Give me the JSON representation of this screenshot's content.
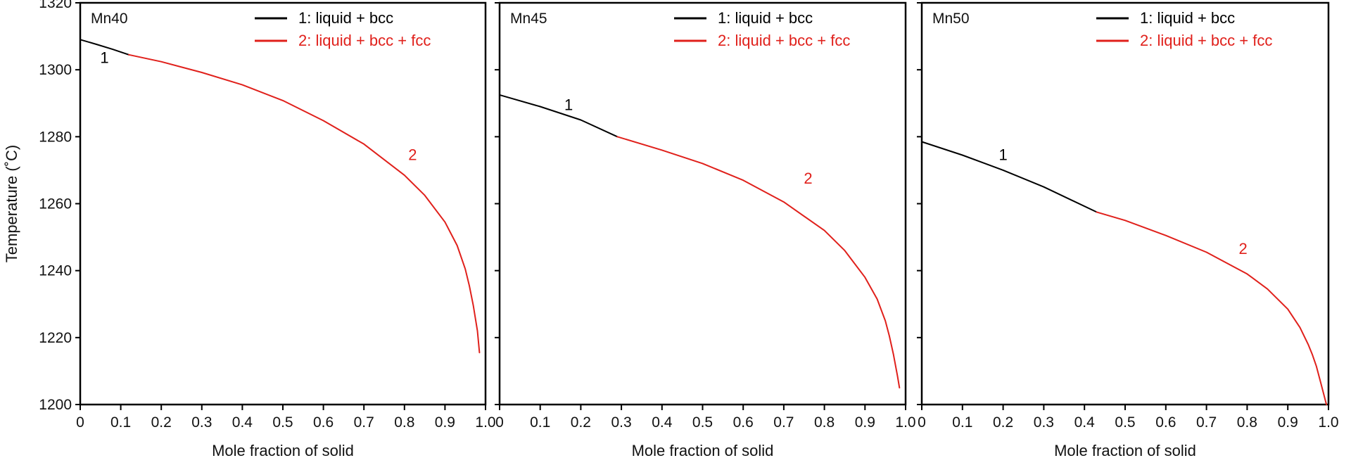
{
  "chart_data": [
    {
      "type": "line",
      "title": "Mn40",
      "xlabel": "Mole fraction of solid",
      "ylabel": "Temperature (˚C)",
      "xlim": [
        0,
        1.0
      ],
      "ylim": [
        1200,
        1320
      ],
      "x_ticks": [
        "0",
        "0.1",
        "0.2",
        "0.3",
        "0.4",
        "0.5",
        "0.6",
        "0.7",
        "0.8",
        "0.9",
        "1.0"
      ],
      "y_ticks": [
        "1200",
        "1220",
        "1240",
        "1260",
        "1280",
        "1300",
        "1320"
      ],
      "grid": false,
      "legend_position": "top-right",
      "series": [
        {
          "name": "1: liquid + bcc",
          "color": "#000000",
          "label": "1",
          "label_at": [
            0.06,
            1302
          ],
          "x": [
            0,
            0.04,
            0.08,
            0.12
          ],
          "y": [
            1309,
            1307.6,
            1306.1,
            1304.5
          ]
        },
        {
          "name": "2: liquid + bcc + fcc",
          "color": "#e0201b",
          "label": "2",
          "label_at": [
            0.82,
            1273
          ],
          "x": [
            0.12,
            0.2,
            0.3,
            0.4,
            0.5,
            0.6,
            0.7,
            0.8,
            0.85,
            0.9,
            0.93,
            0.95,
            0.96,
            0.97,
            0.98,
            0.985
          ],
          "y": [
            1304.5,
            1302.4,
            1299.2,
            1295.5,
            1290.8,
            1284.8,
            1277.8,
            1268.5,
            1262.5,
            1254.5,
            1247.5,
            1240.5,
            1235.5,
            1229.5,
            1222,
            1215.5
          ]
        }
      ]
    },
    {
      "type": "line",
      "title": "Mn45",
      "xlabel": "Mole fraction of solid",
      "ylabel": "",
      "xlim": [
        0,
        1.0
      ],
      "ylim": [
        1200,
        1320
      ],
      "x_ticks": [
        "0",
        "0.1",
        "0.2",
        "0.3",
        "0.4",
        "0.5",
        "0.6",
        "0.7",
        "0.8",
        "0.9",
        "1.0"
      ],
      "grid": false,
      "legend_position": "top-right",
      "series": [
        {
          "name": "1: liquid + bcc",
          "color": "#000000",
          "label": "1",
          "label_at": [
            0.17,
            1288
          ],
          "x": [
            0,
            0.1,
            0.2,
            0.29
          ],
          "y": [
            1292.5,
            1289,
            1285,
            1280
          ]
        },
        {
          "name": "2: liquid + bcc + fcc",
          "color": "#e0201b",
          "label": "2",
          "label_at": [
            0.76,
            1266
          ],
          "x": [
            0.29,
            0.4,
            0.5,
            0.6,
            0.7,
            0.8,
            0.85,
            0.9,
            0.93,
            0.95,
            0.96,
            0.97,
            0.98,
            0.985
          ],
          "y": [
            1280,
            1276,
            1272,
            1267,
            1260.5,
            1252,
            1246,
            1238,
            1231.5,
            1225,
            1220.5,
            1215,
            1208.5,
            1205
          ]
        }
      ]
    },
    {
      "type": "line",
      "title": "Mn50",
      "xlabel": "Mole fraction of solid",
      "ylabel": "",
      "xlim": [
        0,
        1.0
      ],
      "ylim": [
        1200,
        1320
      ],
      "x_ticks": [
        "0",
        "0.1",
        "0.2",
        "0.3",
        "0.4",
        "0.5",
        "0.6",
        "0.7",
        "0.8",
        "0.9",
        "1.0"
      ],
      "grid": false,
      "legend_position": "top-right",
      "series": [
        {
          "name": "1: liquid + bcc",
          "color": "#000000",
          "label": "1",
          "label_at": [
            0.2,
            1273
          ],
          "x": [
            0,
            0.1,
            0.2,
            0.3,
            0.43
          ],
          "y": [
            1278.5,
            1274.5,
            1270,
            1265,
            1257.5
          ]
        },
        {
          "name": "2: liquid + bcc + fcc",
          "color": "#e0201b",
          "label": "2",
          "label_at": [
            0.79,
            1245
          ],
          "x": [
            0.43,
            0.5,
            0.6,
            0.7,
            0.8,
            0.85,
            0.9,
            0.93,
            0.95,
            0.96,
            0.97,
            0.98,
            0.995
          ],
          "y": [
            1257.5,
            1255,
            1250.5,
            1245.5,
            1239,
            1234.5,
            1228.5,
            1223,
            1218,
            1215,
            1211.5,
            1207,
            1200
          ]
        }
      ]
    }
  ]
}
